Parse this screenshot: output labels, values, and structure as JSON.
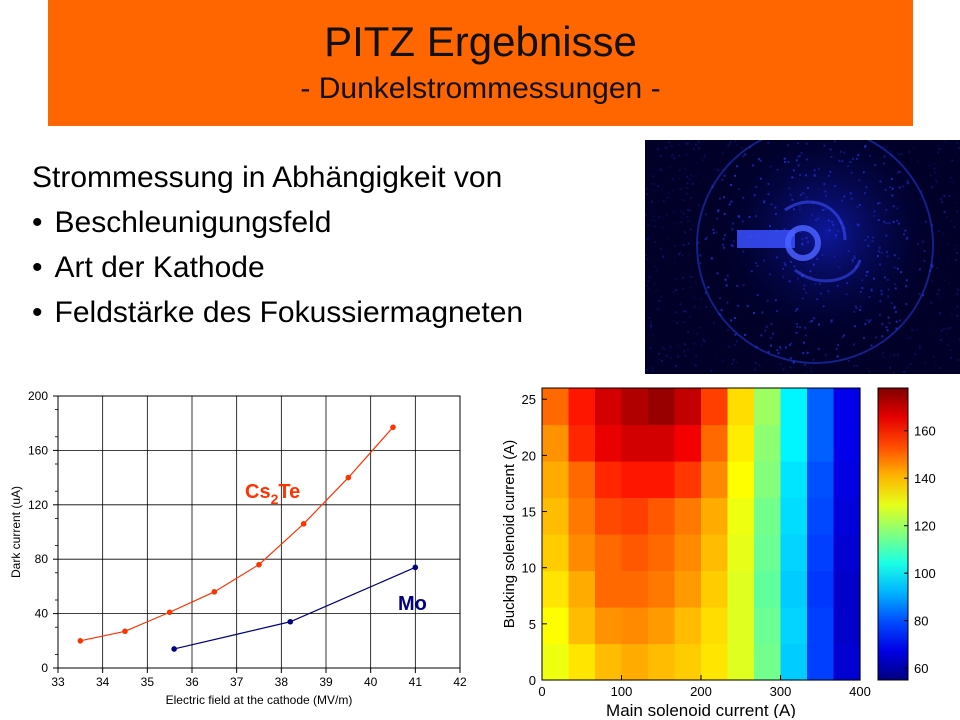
{
  "colors": {
    "title_bg": "#ff6600",
    "photo_bg": "#00002a",
    "cs2te": "#ff3300",
    "mo": "#000080"
  },
  "title": {
    "main": "PITZ Ergebnisse",
    "sub": "- Dunkelstrommessungen -"
  },
  "intro": {
    "lead": "Strommessung in Abhängigkeit von",
    "bullets": [
      "Beschleunigungsfeld",
      "Art der Kathode",
      "Feldstärke des Fokussiermagneten"
    ]
  },
  "photo": {
    "icon": "dark-current-image"
  },
  "chart_data": [
    {
      "type": "line",
      "xlabel": "Electric field at the cathode (MV/m)",
      "ylabel": "Dark current (uA)",
      "xlim": [
        33,
        42
      ],
      "ylim": [
        0,
        200
      ],
      "x_ticks": [
        "33",
        "34",
        "35",
        "36",
        "37",
        "38",
        "39",
        "40",
        "41",
        "42"
      ],
      "y_ticks": [
        "0",
        "40",
        "80",
        "120",
        "160",
        "200"
      ],
      "grid": true,
      "series": [
        {
          "name": "Cs2Te",
          "label_main": "Cs",
          "label_sub": "2",
          "label_tail": "Te",
          "color": "#ff3300",
          "x": [
            33.5,
            34.5,
            35.5,
            36.5,
            37.5,
            38.5,
            39.5,
            40.5
          ],
          "y": [
            20,
            27,
            41,
            56,
            76,
            106,
            140,
            177
          ]
        },
        {
          "name": "Mo",
          "color": "#000080",
          "x": [
            35.6,
            38.2,
            41
          ],
          "y": [
            14,
            34,
            74
          ]
        }
      ]
    },
    {
      "type": "heatmap",
      "xlabel": "Main solenoid current (A)",
      "ylabel": "Bucking solenoid current (A)",
      "xlim": [
        0,
        400
      ],
      "ylim": [
        0,
        26
      ],
      "x_ticks": [
        "0",
        "100",
        "200",
        "300",
        "400"
      ],
      "y_ticks": [
        "0",
        "5",
        "10",
        "15",
        "20",
        "25"
      ],
      "colorbar_ticks": [
        "60",
        "80",
        "100",
        "120",
        "140",
        "160"
      ],
      "colorbar_range": [
        55,
        178
      ],
      "colormap": "jet",
      "values": [
        [
          130,
          135,
          140,
          142,
          140,
          138,
          135,
          128,
          115,
          95,
          78,
          65
        ],
        [
          132,
          140,
          145,
          146,
          144,
          140,
          136,
          128,
          114,
          96,
          78,
          64
        ],
        [
          135,
          142,
          150,
          150,
          148,
          144,
          138,
          128,
          113,
          95,
          77,
          64
        ],
        [
          138,
          146,
          150,
          152,
          150,
          146,
          140,
          129,
          114,
          96,
          78,
          65
        ],
        [
          140,
          148,
          154,
          155,
          152,
          148,
          142,
          130,
          115,
          97,
          79,
          66
        ],
        [
          142,
          150,
          158,
          160,
          160,
          156,
          146,
          132,
          117,
          98,
          80,
          67
        ],
        [
          145,
          158,
          165,
          168,
          168,
          164,
          150,
          134,
          118,
          100,
          82,
          68
        ],
        [
          150,
          160,
          168,
          172,
          175,
          170,
          155,
          136,
          120,
          100,
          82,
          68
        ]
      ]
    }
  ]
}
